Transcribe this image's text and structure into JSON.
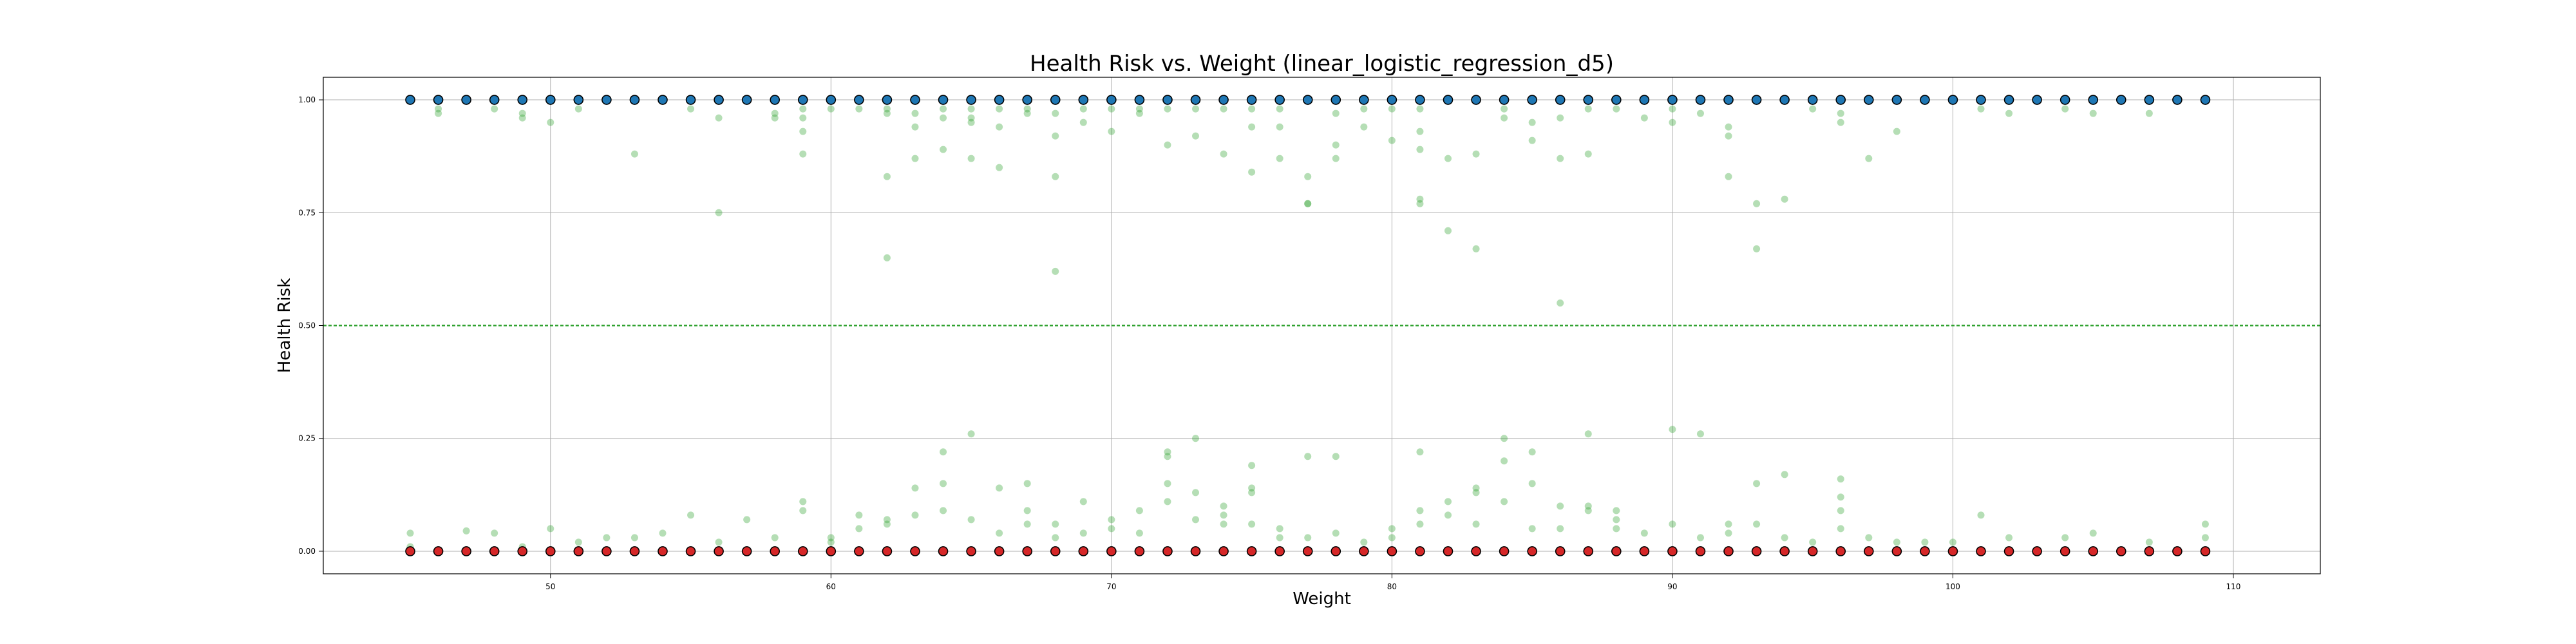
{
  "chart_data": {
    "type": "scatter",
    "title": "Health Risk vs. Weight (linear_logistic_regression_d5)",
    "xlabel": "Weight",
    "ylabel": "Health Risk",
    "xlim": [
      41.9,
      113.1
    ],
    "ylim": [
      -0.05,
      1.05
    ],
    "xticks": [
      50,
      60,
      70,
      80,
      90,
      100,
      110
    ],
    "yticks": [
      0.0,
      0.25,
      0.5,
      0.75,
      1.0
    ],
    "ytick_labels": [
      "0.00",
      "0.25",
      "0.50",
      "0.75",
      "1.00"
    ],
    "xtick_labels": [
      "50",
      "60",
      "70",
      "80",
      "90",
      "100",
      "110"
    ],
    "grid": true,
    "threshold_line": {
      "y": 0.5,
      "style": "dashed",
      "color": "#2ca02c"
    },
    "colors": {
      "high_fill": "#1f77b4",
      "low_fill": "#d62728",
      "marker_edge": "#000000",
      "predictions": "#2ca02c",
      "grid": "#b0b0b0"
    },
    "series": [
      {
        "role": "high-risk-labels",
        "x": [
          45,
          46,
          47,
          48,
          49,
          50,
          51,
          52,
          53,
          54,
          55,
          56,
          57,
          58,
          59,
          60,
          61,
          62,
          63,
          64,
          65,
          66,
          67,
          68,
          69,
          70,
          71,
          72,
          73,
          74,
          75,
          76,
          77,
          78,
          79,
          80,
          81,
          82,
          83,
          84,
          85,
          86,
          87,
          88,
          89,
          90,
          91,
          92,
          93,
          94,
          95,
          96,
          97,
          98,
          99,
          100,
          101,
          102,
          103,
          104,
          105,
          106,
          107,
          108,
          109
        ],
        "y": 1.0
      },
      {
        "role": "low-risk-labels",
        "x": [
          45,
          46,
          47,
          48,
          49,
          50,
          51,
          52,
          53,
          54,
          55,
          56,
          57,
          58,
          59,
          60,
          61,
          62,
          63,
          64,
          65,
          66,
          67,
          68,
          69,
          70,
          71,
          72,
          73,
          74,
          75,
          76,
          77,
          78,
          79,
          80,
          81,
          82,
          83,
          84,
          85,
          86,
          87,
          88,
          89,
          90,
          91,
          92,
          93,
          94,
          95,
          96,
          97,
          98,
          99,
          100,
          101,
          102,
          103,
          104,
          105,
          106,
          107,
          108,
          109
        ],
        "y": 0.0
      },
      {
        "role": "predicted-probabilities",
        "points": [
          [
            45,
            0.04
          ],
          [
            45,
            0.01
          ],
          [
            47,
            0.045
          ],
          [
            48,
            0.04
          ],
          [
            49,
            0.01
          ],
          [
            50,
            0.05
          ],
          [
            51,
            0.02
          ],
          [
            52,
            0.03
          ],
          [
            53,
            0.03
          ],
          [
            54,
            0.04
          ],
          [
            55,
            0.08
          ],
          [
            56,
            0.02
          ],
          [
            57,
            0.07
          ],
          [
            58,
            0.03
          ],
          [
            59,
            0.11
          ],
          [
            59,
            0.09
          ],
          [
            60,
            0.02
          ],
          [
            60,
            0.03
          ],
          [
            61,
            0.08
          ],
          [
            61,
            0.05
          ],
          [
            62,
            0.07
          ],
          [
            62,
            0.06
          ],
          [
            63,
            0.14
          ],
          [
            63,
            0.08
          ],
          [
            64,
            0.22
          ],
          [
            64,
            0.15
          ],
          [
            64,
            0.09
          ],
          [
            65,
            0.26
          ],
          [
            65,
            0.07
          ],
          [
            66,
            0.14
          ],
          [
            66,
            0.04
          ],
          [
            67,
            0.15
          ],
          [
            67,
            0.09
          ],
          [
            67,
            0.06
          ],
          [
            68,
            0.06
          ],
          [
            68,
            0.03
          ],
          [
            69,
            0.11
          ],
          [
            69,
            0.04
          ],
          [
            70,
            0.07
          ],
          [
            70,
            0.05
          ],
          [
            71,
            0.09
          ],
          [
            71,
            0.04
          ],
          [
            72,
            0.22
          ],
          [
            72,
            0.21
          ],
          [
            72,
            0.15
          ],
          [
            72,
            0.11
          ],
          [
            73,
            0.25
          ],
          [
            73,
            0.13
          ],
          [
            73,
            0.07
          ],
          [
            74,
            0.1
          ],
          [
            74,
            0.08
          ],
          [
            74,
            0.06
          ],
          [
            75,
            0.19
          ],
          [
            75,
            0.14
          ],
          [
            75,
            0.13
          ],
          [
            75,
            0.06
          ],
          [
            76,
            0.05
          ],
          [
            76,
            0.03
          ],
          [
            77,
            0.21
          ],
          [
            77,
            0.03
          ],
          [
            78,
            0.21
          ],
          [
            78,
            0.04
          ],
          [
            79,
            0.02
          ],
          [
            80,
            0.05
          ],
          [
            80,
            0.03
          ],
          [
            81,
            0.22
          ],
          [
            81,
            0.09
          ],
          [
            81,
            0.06
          ],
          [
            82,
            0.11
          ],
          [
            82,
            0.08
          ],
          [
            83,
            0.14
          ],
          [
            83,
            0.13
          ],
          [
            83,
            0.06
          ],
          [
            84,
            0.25
          ],
          [
            84,
            0.2
          ],
          [
            84,
            0.11
          ],
          [
            85,
            0.22
          ],
          [
            85,
            0.15
          ],
          [
            85,
            0.05
          ],
          [
            86,
            0.1
          ],
          [
            86,
            0.05
          ],
          [
            87,
            0.26
          ],
          [
            87,
            0.1
          ],
          [
            87,
            0.09
          ],
          [
            88,
            0.09
          ],
          [
            88,
            0.07
          ],
          [
            88,
            0.05
          ],
          [
            89,
            0.04
          ],
          [
            90,
            0.27
          ],
          [
            90,
            0.06
          ],
          [
            91,
            0.26
          ],
          [
            91,
            0.03
          ],
          [
            92,
            0.06
          ],
          [
            92,
            0.04
          ],
          [
            93,
            0.15
          ],
          [
            93,
            0.06
          ],
          [
            94,
            0.17
          ],
          [
            94,
            0.03
          ],
          [
            95,
            0.02
          ],
          [
            96,
            0.16
          ],
          [
            96,
            0.12
          ],
          [
            96,
            0.09
          ],
          [
            96,
            0.05
          ],
          [
            97,
            0.03
          ],
          [
            98,
            0.02
          ],
          [
            99,
            0.02
          ],
          [
            100,
            0.02
          ],
          [
            101,
            0.08
          ],
          [
            102,
            0.03
          ],
          [
            104,
            0.03
          ],
          [
            105,
            0.04
          ],
          [
            107,
            0.02
          ],
          [
            109,
            0.06
          ],
          [
            109,
            0.03
          ],
          [
            46,
            0.98
          ],
          [
            46,
            0.97
          ],
          [
            48,
            0.98
          ],
          [
            49,
            0.97
          ],
          [
            49,
            0.96
          ],
          [
            50,
            0.95
          ],
          [
            51,
            0.98
          ],
          [
            53,
            0.88
          ],
          [
            55,
            0.98
          ],
          [
            56,
            0.96
          ],
          [
            56,
            0.75
          ],
          [
            58,
            0.97
          ],
          [
            58,
            0.96
          ],
          [
            59,
            0.98
          ],
          [
            59,
            0.96
          ],
          [
            59,
            0.93
          ],
          [
            59,
            0.88
          ],
          [
            60,
            0.98
          ],
          [
            61,
            0.98
          ],
          [
            62,
            0.98
          ],
          [
            62,
            0.97
          ],
          [
            62,
            0.83
          ],
          [
            62,
            0.65
          ],
          [
            63,
            0.97
          ],
          [
            63,
            0.94
          ],
          [
            63,
            0.87
          ],
          [
            64,
            0.98
          ],
          [
            64,
            0.96
          ],
          [
            64,
            0.89
          ],
          [
            65,
            0.98
          ],
          [
            65,
            0.96
          ],
          [
            65,
            0.95
          ],
          [
            65,
            0.87
          ],
          [
            66,
            0.98
          ],
          [
            66,
            0.94
          ],
          [
            66,
            0.85
          ],
          [
            67,
            0.98
          ],
          [
            67,
            0.97
          ],
          [
            68,
            0.97
          ],
          [
            68,
            0.92
          ],
          [
            68,
            0.83
          ],
          [
            68,
            0.62
          ],
          [
            69,
            0.98
          ],
          [
            69,
            0.95
          ],
          [
            70,
            0.98
          ],
          [
            70,
            0.93
          ],
          [
            71,
            0.98
          ],
          [
            71,
            0.97
          ],
          [
            72,
            0.98
          ],
          [
            72,
            0.9
          ],
          [
            73,
            0.98
          ],
          [
            73,
            0.92
          ],
          [
            74,
            0.98
          ],
          [
            74,
            0.88
          ],
          [
            75,
            0.98
          ],
          [
            75,
            0.94
          ],
          [
            75,
            0.84
          ],
          [
            76,
            0.98
          ],
          [
            76,
            0.94
          ],
          [
            76,
            0.87
          ],
          [
            77,
            0.83
          ],
          [
            77,
            0.77
          ],
          [
            77,
            0.77
          ],
          [
            78,
            0.97
          ],
          [
            78,
            0.9
          ],
          [
            78,
            0.87
          ],
          [
            79,
            0.98
          ],
          [
            79,
            0.94
          ],
          [
            80,
            0.98
          ],
          [
            80,
            0.91
          ],
          [
            81,
            0.98
          ],
          [
            81,
            0.93
          ],
          [
            81,
            0.89
          ],
          [
            81,
            0.78
          ],
          [
            81,
            0.77
          ],
          [
            82,
            0.87
          ],
          [
            82,
            0.71
          ],
          [
            83,
            0.88
          ],
          [
            83,
            0.67
          ],
          [
            84,
            0.98
          ],
          [
            84,
            0.96
          ],
          [
            85,
            0.95
          ],
          [
            85,
            0.91
          ],
          [
            86,
            0.96
          ],
          [
            86,
            0.87
          ],
          [
            86,
            0.55
          ],
          [
            87,
            0.98
          ],
          [
            87,
            0.88
          ],
          [
            88,
            0.98
          ],
          [
            89,
            0.96
          ],
          [
            90,
            0.98
          ],
          [
            90,
            0.95
          ],
          [
            91,
            0.97
          ],
          [
            92,
            0.94
          ],
          [
            92,
            0.92
          ],
          [
            92,
            0.83
          ],
          [
            93,
            0.77
          ],
          [
            93,
            0.67
          ],
          [
            94,
            0.78
          ],
          [
            95,
            0.98
          ],
          [
            96,
            0.97
          ],
          [
            96,
            0.95
          ],
          [
            97,
            0.87
          ],
          [
            98,
            0.93
          ],
          [
            101,
            0.98
          ],
          [
            102,
            0.97
          ],
          [
            104,
            0.98
          ],
          [
            105,
            0.97
          ],
          [
            107,
            0.97
          ]
        ]
      }
    ]
  }
}
